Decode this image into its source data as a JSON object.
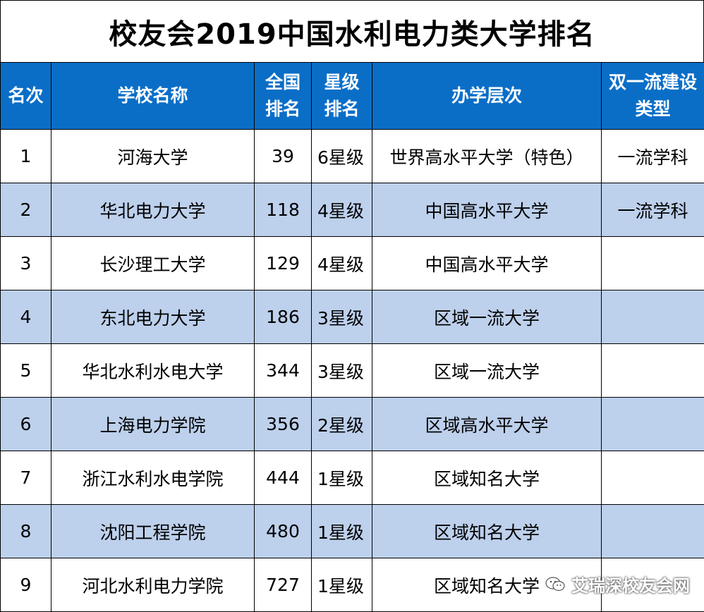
{
  "title": "校友会2019中国水利电力类大学排名",
  "headers": {
    "rank": "名次",
    "school": "学校名称",
    "national_rank": [
      "全国",
      "排名"
    ],
    "star_rank": [
      "星级",
      "排名"
    ],
    "level": "办学层次",
    "double_first": [
      "双一流建设",
      "类型"
    ]
  },
  "rows": [
    {
      "rank": "1",
      "school": "河海大学",
      "national": "39",
      "stars": "6星级",
      "level": "世界高水平大学（特色）",
      "type": "一流学科"
    },
    {
      "rank": "2",
      "school": "华北电力大学",
      "national": "118",
      "stars": "4星级",
      "level": "中国高水平大学",
      "type": "一流学科"
    },
    {
      "rank": "3",
      "school": "长沙理工大学",
      "national": "129",
      "stars": "4星级",
      "level": "中国高水平大学",
      "type": ""
    },
    {
      "rank": "4",
      "school": "东北电力大学",
      "national": "186",
      "stars": "3星级",
      "level": "区域一流大学",
      "type": ""
    },
    {
      "rank": "5",
      "school": "华北水利水电大学",
      "national": "344",
      "stars": "3星级",
      "level": "区域一流大学",
      "type": ""
    },
    {
      "rank": "6",
      "school": "上海电力学院",
      "national": "356",
      "stars": "2星级",
      "level": "区域高水平大学",
      "type": ""
    },
    {
      "rank": "7",
      "school": "浙江水利水电学院",
      "national": "444",
      "stars": "1星级",
      "level": "区域知名大学",
      "type": ""
    },
    {
      "rank": "8",
      "school": "沈阳工程学院",
      "national": "480",
      "stars": "1星级",
      "level": "区域知名大学",
      "type": ""
    },
    {
      "rank": "9",
      "school": "河北水利电力学院",
      "national": "727",
      "stars": "1星级",
      "level": "区域知名大学",
      "type": ""
    }
  ],
  "watermark": {
    "text": "艾瑞深校友会网",
    "icon": "wechat-icon"
  },
  "colors": {
    "header_bg": "#0a6ec7",
    "header_text": "#ffffff",
    "alt_row_bg": "#bdd0ec",
    "border": "#000000"
  }
}
